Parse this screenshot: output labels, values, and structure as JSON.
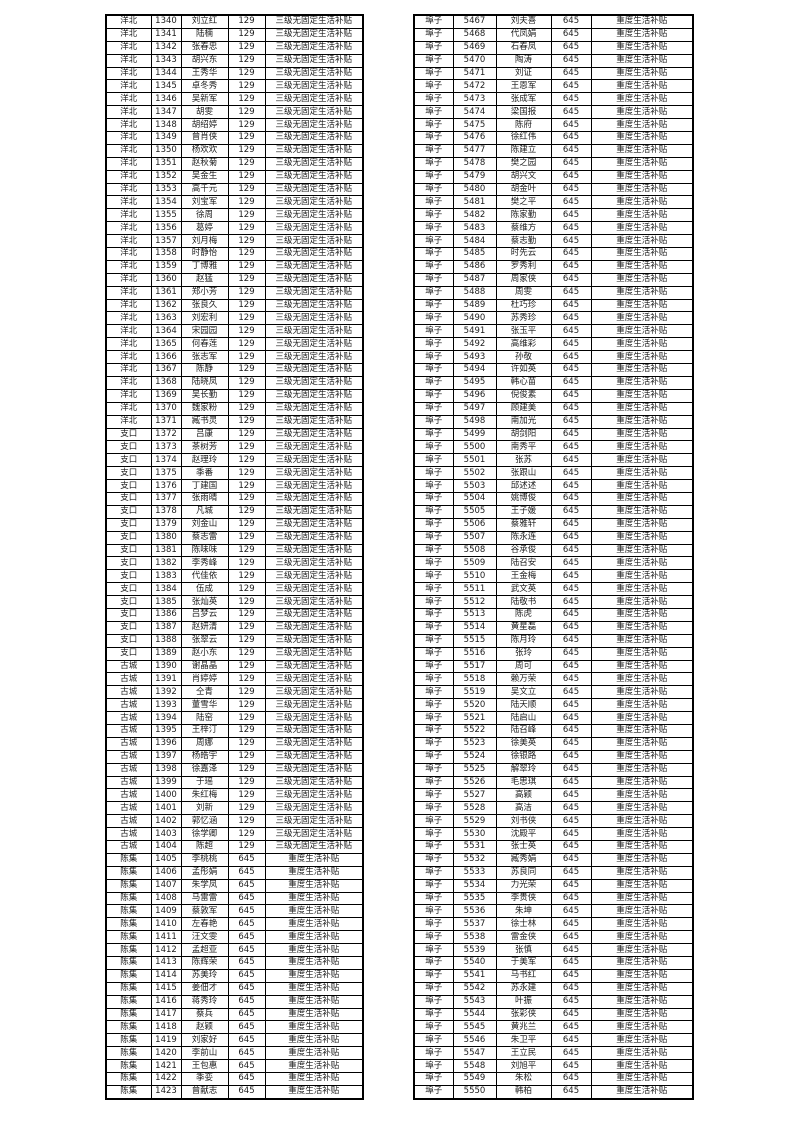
{
  "page": {
    "background_color": "#ffffff",
    "border_color": "#000000",
    "text_color": "#1c1c1c"
  },
  "tables": [
    {
      "title": "subsidy-roster-left",
      "columns": [
        "region",
        "id",
        "name",
        "amount",
        "subsidy_type"
      ],
      "groups": [
        {
          "region": "洋北",
          "amount": "129",
          "subsidy": "三级无固定生活补贴",
          "rows": [
            [
              "1340",
              "刘立红"
            ],
            [
              "1341",
              "陆楠"
            ],
            [
              "1342",
              "张春忠"
            ],
            [
              "1343",
              "胡兴东"
            ],
            [
              "1344",
              "王秀华"
            ],
            [
              "1345",
              "卓冬秀"
            ],
            [
              "1346",
              "吴新军"
            ],
            [
              "1347",
              "胡雯"
            ],
            [
              "1348",
              "胡绍婷"
            ],
            [
              "1349",
              "曾肖侠"
            ],
            [
              "1350",
              "杨欢欢"
            ],
            [
              "1351",
              "赵秋菊"
            ],
            [
              "1352",
              "吴金生"
            ],
            [
              "1353",
              "高千元"
            ],
            [
              "1354",
              "刘宝军"
            ],
            [
              "1355",
              "徐周"
            ],
            [
              "1356",
              "葛婷"
            ],
            [
              "1357",
              "刘月梅"
            ],
            [
              "1358",
              "时静怡"
            ],
            [
              "1359",
              "丁博雅"
            ],
            [
              "1360",
              "赵猛"
            ],
            [
              "1361",
              "郑小芳"
            ],
            [
              "1362",
              "张良久"
            ],
            [
              "1363",
              "刘宏利"
            ],
            [
              "1364",
              "宋园园"
            ],
            [
              "1365",
              "何春莲"
            ],
            [
              "1366",
              "张志军"
            ],
            [
              "1367",
              "陈静"
            ],
            [
              "1368",
              "陆晓凤"
            ],
            [
              "1369",
              "吴长勤"
            ],
            [
              "1370",
              "魏家粉"
            ],
            [
              "1371",
              "臧书灵"
            ]
          ]
        },
        {
          "region": "支口",
          "amount": "129",
          "subsidy": "三级无固定生活补贴",
          "rows": [
            [
              "1372",
              "吕康"
            ],
            [
              "1373",
              "茶树芳"
            ],
            [
              "1374",
              "赵理玲"
            ],
            [
              "1375",
              "季番"
            ],
            [
              "1376",
              "丁建国"
            ],
            [
              "1377",
              "张雨晴"
            ],
            [
              "1378",
              "凡城"
            ],
            [
              "1379",
              "刘金山"
            ],
            [
              "1380",
              "蔡志雷"
            ],
            [
              "1381",
              "陈味味"
            ],
            [
              "1382",
              "李秀峰"
            ],
            [
              "1383",
              "代佳依"
            ],
            [
              "1384",
              "伍成"
            ],
            [
              "1385",
              "张灿英"
            ],
            [
              "1386",
              "吕梦云"
            ],
            [
              "1387",
              "赵妍清"
            ],
            [
              "1388",
              "张翠云"
            ],
            [
              "1389",
              "赵小东"
            ]
          ]
        },
        {
          "region": "古城",
          "amount": "129",
          "subsidy": "三级无固定生活补贴",
          "rows": [
            [
              "1390",
              "谢晶晶"
            ],
            [
              "1391",
              "肖婷婷"
            ],
            [
              "1392",
              "仝青"
            ],
            [
              "1393",
              "董雪华"
            ],
            [
              "1394",
              "陆窑"
            ],
            [
              "1395",
              "王梓汀"
            ],
            [
              "1396",
              "周娜"
            ],
            [
              "1397",
              "杨皓宇"
            ],
            [
              "1398",
              "徐嘉泽"
            ],
            [
              "1399",
              "于瑶"
            ],
            [
              "1400",
              "朱红梅"
            ],
            [
              "1401",
              "刘新"
            ],
            [
              "1402",
              "郭忆涵"
            ],
            [
              "1403",
              "徐学卿"
            ],
            [
              "1404",
              "陈超"
            ]
          ]
        },
        {
          "region": "陈集",
          "amount": "645",
          "subsidy": "重度生活补贴",
          "rows": [
            [
              "1405",
              "李桃桃"
            ],
            [
              "1406",
              "孟彤娟"
            ],
            [
              "1407",
              "朱学凤"
            ],
            [
              "1408",
              "马雷雷"
            ],
            [
              "1409",
              "蔡敦军"
            ],
            [
              "1410",
              "左春艳"
            ],
            [
              "1411",
              "汪文雯"
            ],
            [
              "1412",
              "孟超亚"
            ],
            [
              "1413",
              "陈辉荣"
            ],
            [
              "1414",
              "苏美玲"
            ],
            [
              "1415",
              "姜佃才"
            ],
            [
              "1416",
              "蒋秀玲"
            ],
            [
              "1417",
              "蔡兵"
            ],
            [
              "1418",
              "赵颖"
            ],
            [
              "1419",
              "刘家好"
            ],
            [
              "1420",
              "李前山"
            ],
            [
              "1421",
              "王包惠"
            ],
            [
              "1422",
              "季娈"
            ],
            [
              "1423",
              "曾献志"
            ]
          ]
        }
      ]
    },
    {
      "title": "subsidy-roster-right",
      "columns": [
        "region",
        "id",
        "name",
        "amount",
        "subsidy_type"
      ],
      "groups": [
        {
          "region": "埠子",
          "amount": "645",
          "subsidy": "重度生活补贴",
          "rows": [
            [
              "5467",
              "刘夫喜"
            ],
            [
              "5468",
              "代凤娟"
            ],
            [
              "5469",
              "石春凤"
            ],
            [
              "5470",
              "陶涛"
            ],
            [
              "5471",
              "刘证"
            ],
            [
              "5472",
              "王恩军"
            ],
            [
              "5473",
              "张成军"
            ],
            [
              "5474",
              "梁国报"
            ],
            [
              "5475",
              "陈府"
            ],
            [
              "5476",
              "徐红伟"
            ],
            [
              "5477",
              "陈建立"
            ],
            [
              "5478",
              "樊之园"
            ],
            [
              "5479",
              "胡兴文"
            ],
            [
              "5480",
              "胡金叶"
            ],
            [
              "5481",
              "樊之平"
            ],
            [
              "5482",
              "陈家勤"
            ],
            [
              "5483",
              "蔡维方"
            ],
            [
              "5484",
              "蔡志勤"
            ],
            [
              "5485",
              "时先云"
            ],
            [
              "5486",
              "罗秀利"
            ],
            [
              "5487",
              "周家侠"
            ],
            [
              "5488",
              "周雯"
            ],
            [
              "5489",
              "杜巧珍"
            ],
            [
              "5490",
              "苏秀珍"
            ],
            [
              "5491",
              "张玉平"
            ],
            [
              "5492",
              "高维彩"
            ],
            [
              "5493",
              "孙敬"
            ],
            [
              "5494",
              "许如英"
            ],
            [
              "5495",
              "韩心苗"
            ],
            [
              "5496",
              "倪俊素"
            ],
            [
              "5497",
              "顾建美"
            ],
            [
              "5498",
              "南加光"
            ],
            [
              "5499",
              "胡剑阳"
            ],
            [
              "5500",
              "南秀平"
            ],
            [
              "5501",
              "张苏"
            ],
            [
              "5502",
              "张跟山"
            ],
            [
              "5503",
              "邱述述"
            ],
            [
              "5504",
              "姚博俊"
            ],
            [
              "5505",
              "王子媛"
            ],
            [
              "5506",
              "蔡雅轩"
            ],
            [
              "5507",
              "陈永连"
            ],
            [
              "5508",
              "谷承俊"
            ],
            [
              "5509",
              "陆召安"
            ],
            [
              "5510",
              "王金梅"
            ],
            [
              "5511",
              "武文英"
            ],
            [
              "5512",
              "陆敬书"
            ],
            [
              "5513",
              "陈虎"
            ],
            [
              "5514",
              "黄星磊"
            ],
            [
              "5515",
              "陈月玲"
            ],
            [
              "5516",
              "张玲"
            ],
            [
              "5517",
              "周可"
            ],
            [
              "5518",
              "赖万荣"
            ],
            [
              "5519",
              "吴文立"
            ],
            [
              "5520",
              "陆天顺"
            ],
            [
              "5521",
              "陆启山"
            ],
            [
              "5522",
              "陆召峰"
            ],
            [
              "5523",
              "徐美英"
            ],
            [
              "5524",
              "徐银路"
            ],
            [
              "5525",
              "解翠玲"
            ],
            [
              "5526",
              "毛思琪"
            ],
            [
              "5527",
              "高颖"
            ],
            [
              "5528",
              "高洁"
            ],
            [
              "5529",
              "刘书侠"
            ],
            [
              "5530",
              "沈殿平"
            ],
            [
              "5531",
              "张士英"
            ],
            [
              "5532",
              "臧秀娟"
            ],
            [
              "5533",
              "苏良同"
            ],
            [
              "5534",
              "力光荣"
            ],
            [
              "5535",
              "李贵侠"
            ],
            [
              "5536",
              "朱坤"
            ],
            [
              "5537",
              "徐士林"
            ],
            [
              "5538",
              "雷金侠"
            ],
            [
              "5539",
              "张慎"
            ],
            [
              "5540",
              "于美军"
            ],
            [
              "5541",
              "马书红"
            ],
            [
              "5542",
              "苏永建"
            ],
            [
              "5543",
              "叶振"
            ],
            [
              "5544",
              "张彩侠"
            ],
            [
              "5545",
              "黄兆兰"
            ],
            [
              "5546",
              "朱卫平"
            ],
            [
              "5547",
              "王立民"
            ],
            [
              "5548",
              "刘旭平"
            ],
            [
              "5549",
              "朱松"
            ],
            [
              "5550",
              "韩柏"
            ]
          ]
        }
      ]
    }
  ]
}
